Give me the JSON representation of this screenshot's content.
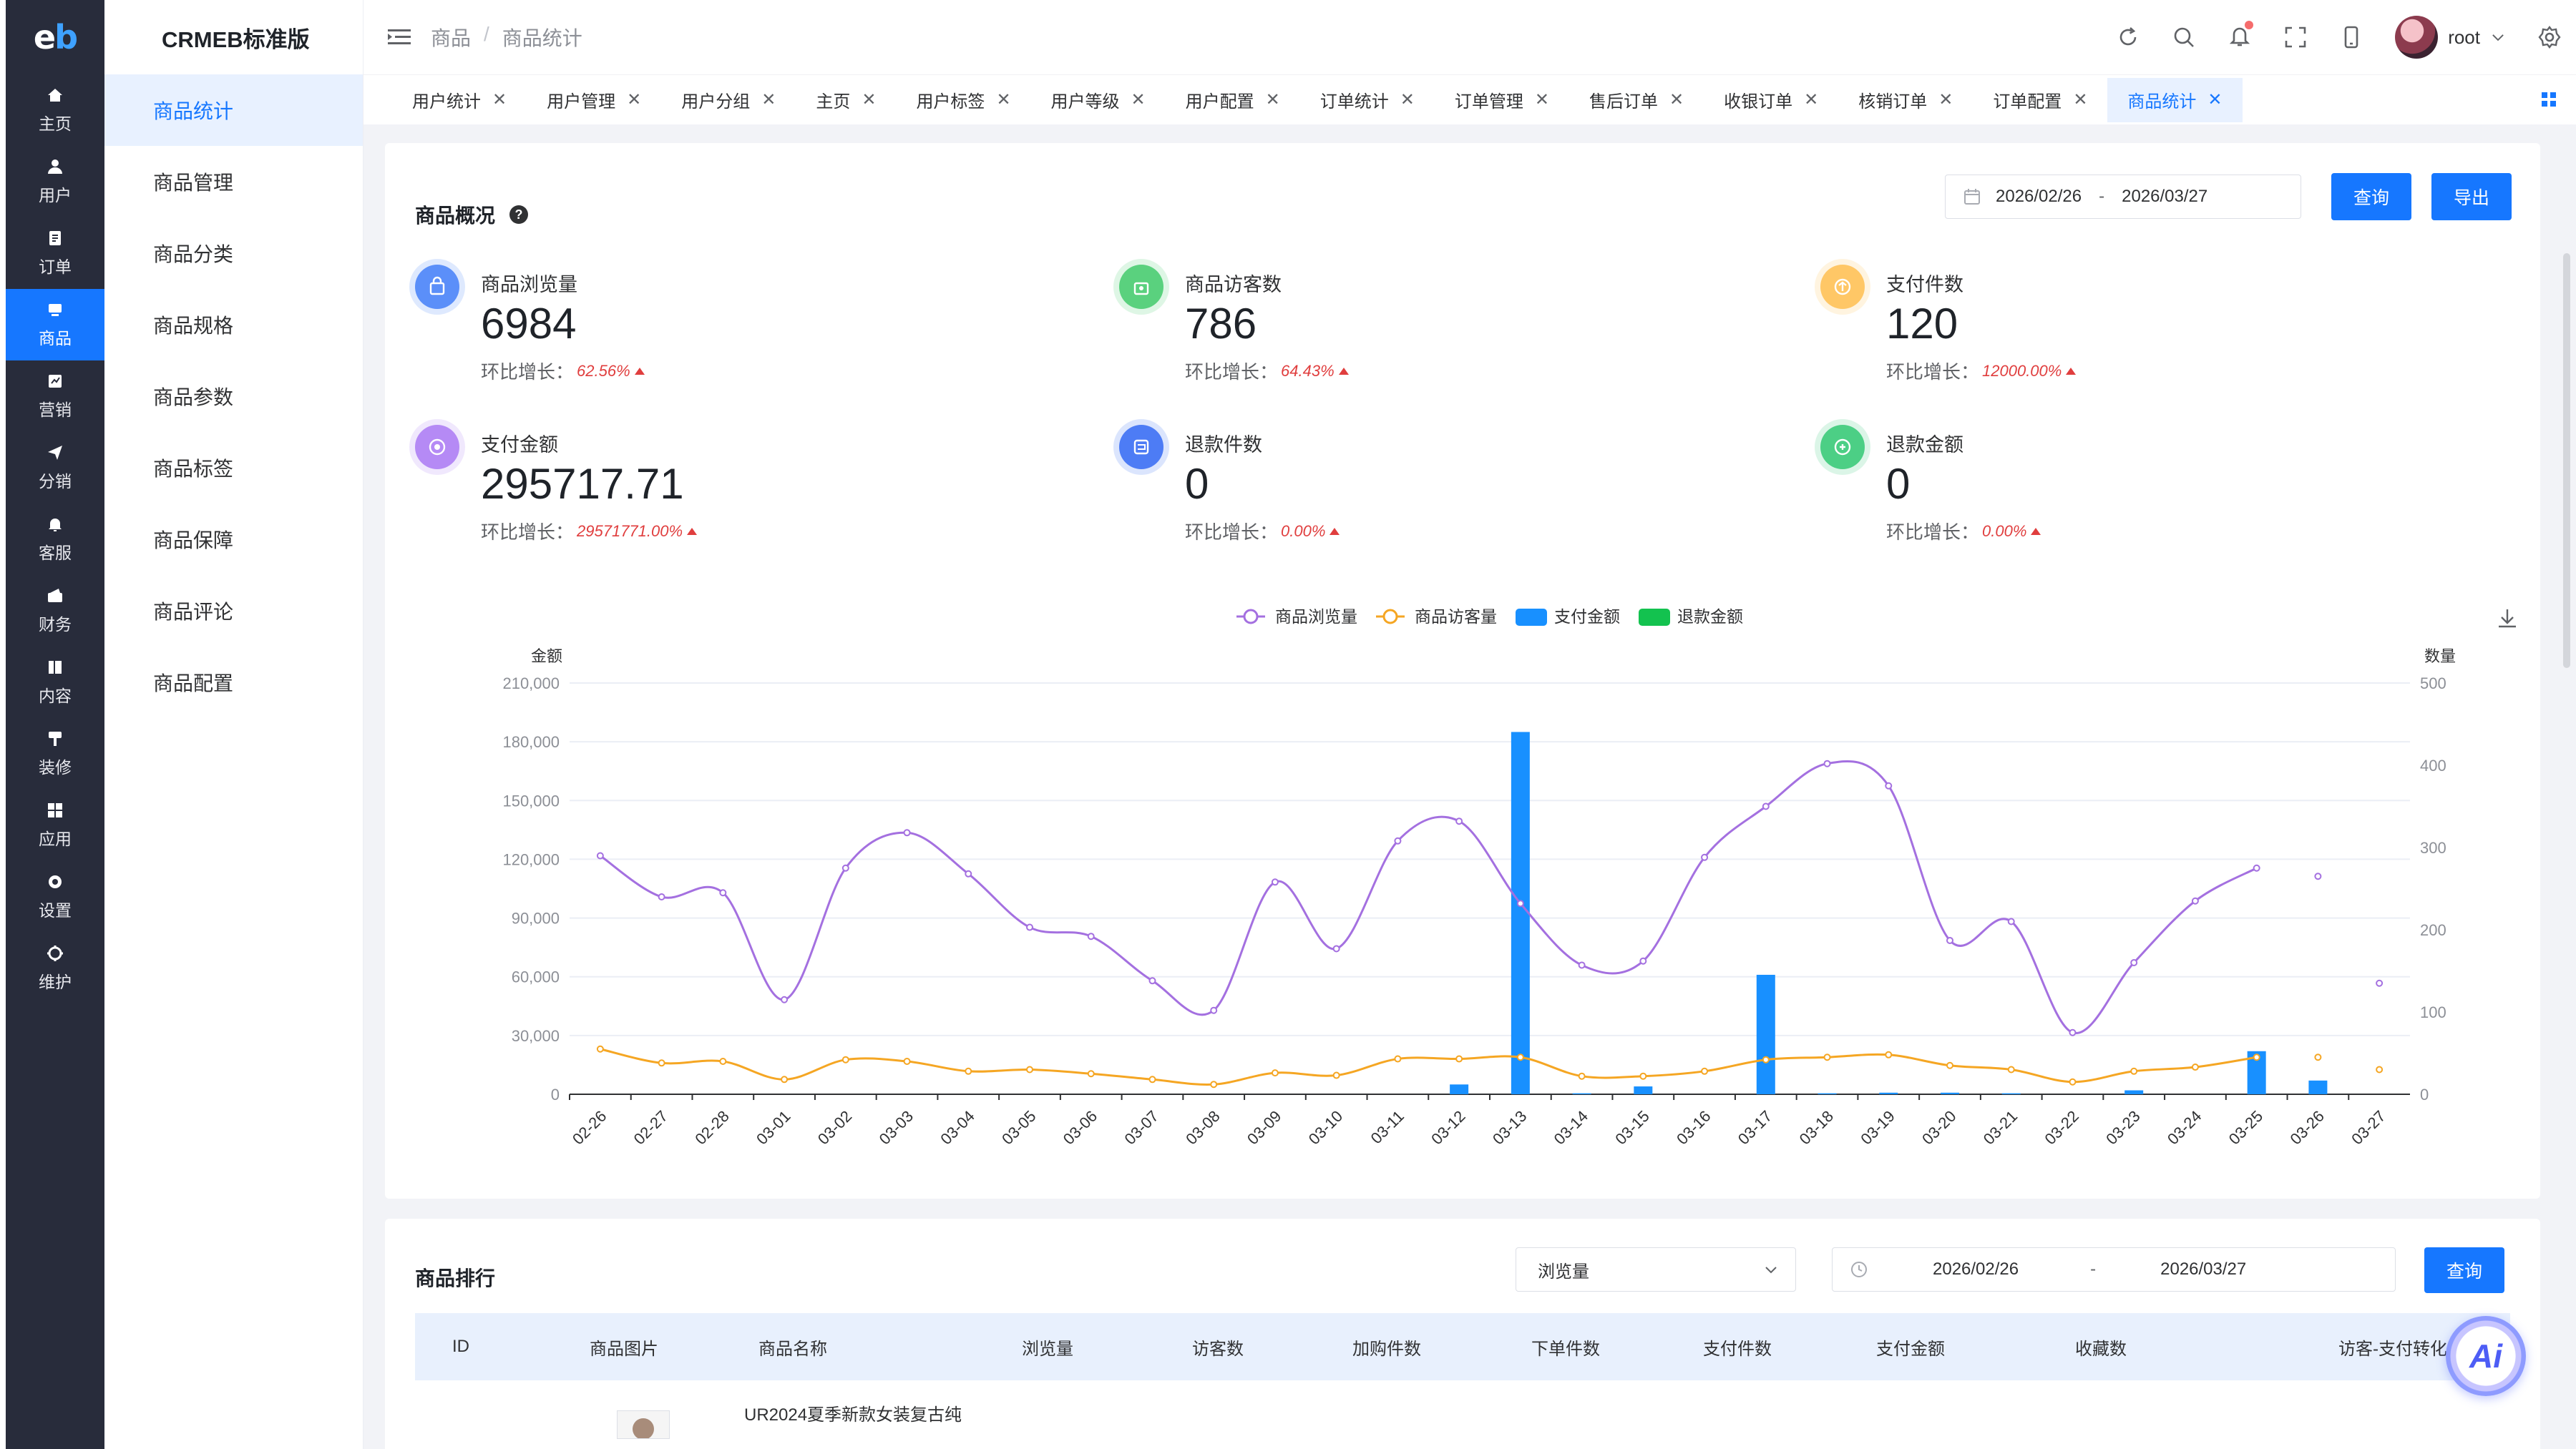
{
  "rail": {
    "logo_left": "e",
    "logo_right": "b",
    "items": [
      {
        "label": "主页",
        "icon": "home-icon"
      },
      {
        "label": "用户",
        "icon": "user-icon"
      },
      {
        "label": "订单",
        "icon": "order-icon"
      },
      {
        "label": "商品",
        "icon": "product-icon",
        "active": true
      },
      {
        "label": "营销",
        "icon": "marketing-icon"
      },
      {
        "label": "分销",
        "icon": "distribution-icon"
      },
      {
        "label": "客服",
        "icon": "service-icon"
      },
      {
        "label": "财务",
        "icon": "finance-icon"
      },
      {
        "label": "内容",
        "icon": "content-icon"
      },
      {
        "label": "装修",
        "icon": "decoration-icon"
      },
      {
        "label": "应用",
        "icon": "apps-icon"
      },
      {
        "label": "设置",
        "icon": "settings-icon"
      },
      {
        "label": "维护",
        "icon": "maintenance-icon"
      }
    ]
  },
  "submenu": {
    "title": "CRMEB标准版",
    "items": [
      "商品统计",
      "商品管理",
      "商品分类",
      "商品规格",
      "商品参数",
      "商品标签",
      "商品保障",
      "商品评论",
      "商品配置"
    ]
  },
  "header": {
    "breadcrumb": [
      "商品",
      "商品统计"
    ],
    "username": "root"
  },
  "tabs": [
    "用户统计",
    "用户管理",
    "用户分组",
    "主页",
    "用户标签",
    "用户等级",
    "用户配置",
    "订单统计",
    "订单管理",
    "售后订单",
    "收银订单",
    "核销订单",
    "订单配置",
    "商品统计"
  ],
  "overview": {
    "title": "商品概况",
    "date_start": "2026/02/26",
    "date_sep": "-",
    "date_end": "2026/03/27",
    "query_label": "查询",
    "export_label": "导出",
    "growth_label": "环比增长：",
    "stats": [
      {
        "label": "商品浏览量",
        "value": "6984",
        "growth": "62.56%",
        "color": "#5b8ff9",
        "icon": "shop-bag-icon"
      },
      {
        "label": "商品访客数",
        "value": "786",
        "growth": "64.43%",
        "color": "#5ad17e",
        "icon": "visitor-bag-icon"
      },
      {
        "label": "支付件数",
        "value": "120",
        "growth": "12000.00%",
        "color": "#ffc766",
        "icon": "payment-item-icon"
      },
      {
        "label": "支付金额",
        "value": "295717.71",
        "growth": "29571771.00%",
        "color": "#b58af5",
        "icon": "payment-amount-icon"
      },
      {
        "label": "退款件数",
        "value": "0",
        "growth": "0.00%",
        "color": "#4d7cf5",
        "icon": "refund-item-icon"
      },
      {
        "label": "退款金额",
        "value": "0",
        "growth": "0.00%",
        "color": "#4ccf85",
        "icon": "refund-amount-icon"
      }
    ]
  },
  "chart_data": {
    "type": "line",
    "categories": [
      "02-26",
      "02-27",
      "02-28",
      "03-01",
      "03-02",
      "03-03",
      "03-04",
      "03-05",
      "03-06",
      "03-07",
      "03-08",
      "03-09",
      "03-10",
      "03-11",
      "03-12",
      "03-13",
      "03-14",
      "03-15",
      "03-16",
      "03-17",
      "03-18",
      "03-19",
      "03-20",
      "03-21",
      "03-22",
      "03-23",
      "03-24",
      "03-25",
      "03-26",
      "03-27"
    ],
    "ylabel_left": "金额",
    "ylabel_right": "数量",
    "ylim_left": [
      0,
      210000
    ],
    "yticks_left": [
      "0",
      "30,000",
      "60,000",
      "90,000",
      "120,000",
      "150,000",
      "180,000",
      "210,000"
    ],
    "ylim_right": [
      0,
      500
    ],
    "yticks_right": [
      "0",
      "100",
      "200",
      "300",
      "400",
      "500"
    ],
    "legend_position": "top-center",
    "series": [
      {
        "name": "商品浏览量",
        "kind": "line",
        "axis": "right",
        "color": "#a470e0",
        "values": [
          290,
          240,
          245,
          115,
          275,
          318,
          268,
          203,
          192,
          138,
          102,
          258,
          177,
          308,
          332,
          232,
          157,
          162,
          288,
          350,
          402,
          375,
          187,
          210,
          75,
          160,
          235,
          275,
          265,
          135
        ]
      },
      {
        "name": "商品访客量",
        "kind": "line",
        "axis": "right",
        "color": "#f5a623",
        "values": [
          55,
          38,
          40,
          18,
          42,
          40,
          28,
          30,
          25,
          18,
          12,
          26,
          23,
          43,
          43,
          45,
          22,
          22,
          28,
          42,
          45,
          48,
          35,
          30,
          15,
          28,
          33,
          45,
          45,
          30
        ]
      },
      {
        "name": "支付金额",
        "kind": "bar",
        "axis": "left",
        "color": "#1890ff",
        "values": [
          0,
          0,
          0,
          0,
          0,
          0,
          0,
          0,
          0,
          0,
          0,
          0,
          0,
          0,
          5000,
          185000,
          500,
          4000,
          0,
          61000,
          500,
          800,
          800,
          500,
          0,
          2000,
          0,
          22000,
          7000,
          0
        ]
      },
      {
        "name": "退款金额",
        "kind": "bar",
        "axis": "left",
        "color": "#13c24f",
        "values": [
          0,
          0,
          0,
          0,
          0,
          0,
          0,
          0,
          0,
          0,
          0,
          0,
          0,
          0,
          0,
          0,
          0,
          0,
          0,
          0,
          0,
          0,
          0,
          0,
          0,
          0,
          0,
          0,
          0,
          0
        ]
      }
    ]
  },
  "rank": {
    "title": "商品排行",
    "sort_value": "浏览量",
    "date_start": "2026/02/26",
    "date_sep": "-",
    "date_end": "2026/03/27",
    "query_label": "查询",
    "columns": [
      "ID",
      "商品图片",
      "商品名称",
      "浏览量",
      "访客数",
      "加购件数",
      "下单件数",
      "支付件数",
      "支付金额",
      "收藏数",
      "访客-支付转化率(%)"
    ],
    "rows": [
      {
        "name": "UR2024夏季新款女装复古纯"
      }
    ]
  },
  "ai_label": "Ai"
}
